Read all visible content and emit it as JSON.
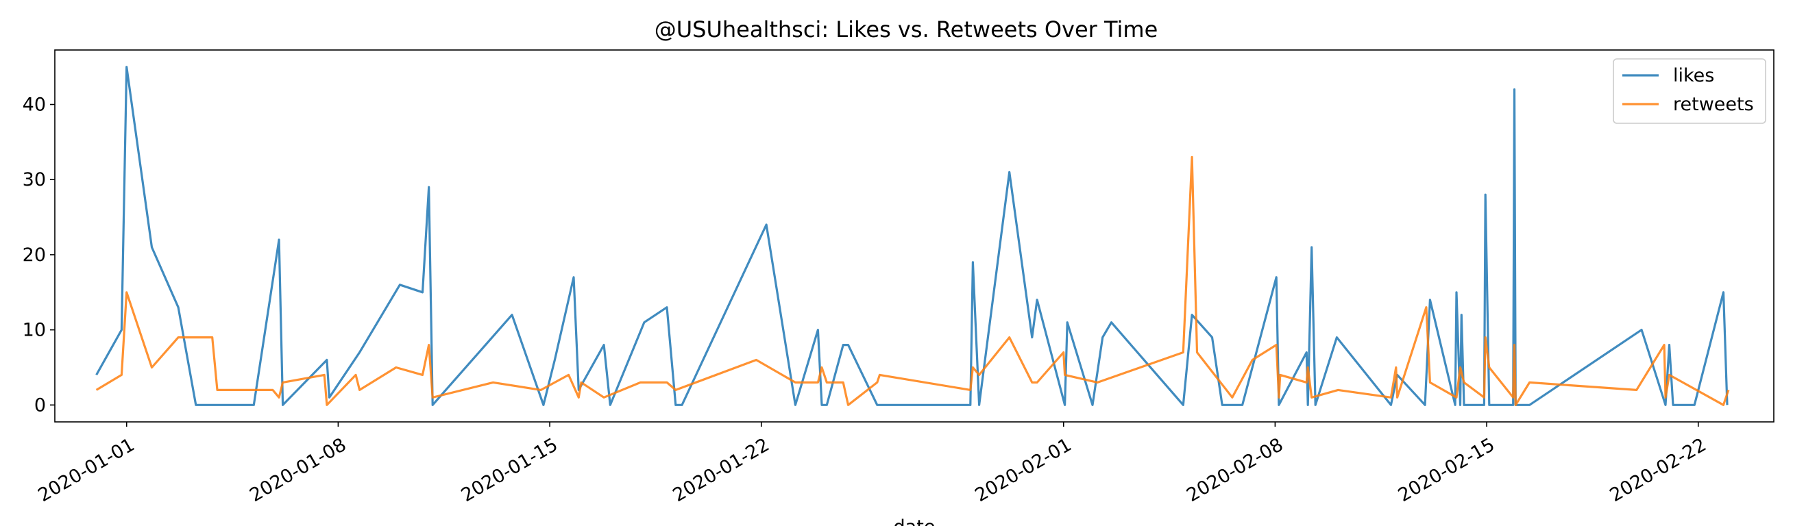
{
  "chart_data": {
    "type": "line",
    "title": "@USUhealthsci: Likes vs. Retweets Over Time",
    "xlabel": "date",
    "ylabel": "",
    "xlim": [
      "2019-12-29T15:00",
      "2020-02-24T12:00"
    ],
    "ylim": [
      -2.25,
      47.25
    ],
    "x_ticks": [
      "2020-01-01",
      "2020-01-08",
      "2020-01-15",
      "2020-01-22",
      "2020-02-01",
      "2020-02-08",
      "2020-02-15",
      "2020-02-22"
    ],
    "y_ticks": [
      0,
      10,
      20,
      30,
      40
    ],
    "grid": false,
    "legend_position": "upper-right",
    "series": [
      {
        "name": "likes",
        "color": "#1f77b4",
        "points": [
          [
            "2019-12-31T00:00",
            4
          ],
          [
            "2019-12-31T20:00",
            10
          ],
          [
            "2020-01-01T00:00",
            45
          ],
          [
            "2020-01-01T20:00",
            21
          ],
          [
            "2020-01-02T17:00",
            13
          ],
          [
            "2020-01-03T07:00",
            0
          ],
          [
            "2020-01-05T05:00",
            0
          ],
          [
            "2020-01-06T01:00",
            22
          ],
          [
            "2020-01-06T04:00",
            0
          ],
          [
            "2020-01-07T15:00",
            6
          ],
          [
            "2020-01-07T17:00",
            1
          ],
          [
            "2020-01-08T17:00",
            7
          ],
          [
            "2020-01-10T01:00",
            16
          ],
          [
            "2020-01-10T19:00",
            15
          ],
          [
            "2020-01-11T00:00",
            29
          ],
          [
            "2020-01-11T03:00",
            0
          ],
          [
            "2020-01-13T18:00",
            12
          ],
          [
            "2020-01-14T19:00",
            0
          ],
          [
            "2020-01-15T04:00",
            6
          ],
          [
            "2020-01-15T19:00",
            17
          ],
          [
            "2020-01-15T23:00",
            2
          ],
          [
            "2020-01-16T19:00",
            8
          ],
          [
            "2020-01-17T00:00",
            0
          ],
          [
            "2020-01-18T03:00",
            11
          ],
          [
            "2020-01-18T21:00",
            13
          ],
          [
            "2020-01-19T04:00",
            0
          ],
          [
            "2020-01-19T09:00",
            0
          ],
          [
            "2020-01-22T04:00",
            24
          ],
          [
            "2020-01-23T03:00",
            0
          ],
          [
            "2020-01-23T21:00",
            10
          ],
          [
            "2020-01-24T00:00",
            0
          ],
          [
            "2020-01-24T04:00",
            0
          ],
          [
            "2020-01-24T17:00",
            8
          ],
          [
            "2020-01-24T21:00",
            8
          ],
          [
            "2020-01-25T20:00",
            0
          ],
          [
            "2020-01-28T22:00",
            0
          ],
          [
            "2020-01-29T00:00",
            19
          ],
          [
            "2020-01-29T05:00",
            0
          ],
          [
            "2020-01-30T05:00",
            31
          ],
          [
            "2020-01-30T23:00",
            9
          ],
          [
            "2020-01-31T03:00",
            14
          ],
          [
            "2020-02-01T01:00",
            0
          ],
          [
            "2020-02-01T03:00",
            11
          ],
          [
            "2020-02-01T23:00",
            0
          ],
          [
            "2020-02-02T07:00",
            9
          ],
          [
            "2020-02-02T14:00",
            11
          ],
          [
            "2020-02-04T23:00",
            0
          ],
          [
            "2020-02-05T06:00",
            12
          ],
          [
            "2020-02-05T22:00",
            9
          ],
          [
            "2020-02-06T06:00",
            0
          ],
          [
            "2020-02-06T22:00",
            0
          ],
          [
            "2020-02-08T01:00",
            17
          ],
          [
            "2020-02-08T03:00",
            0
          ],
          [
            "2020-02-09T01:00",
            7
          ],
          [
            "2020-02-09T02:00",
            0
          ],
          [
            "2020-02-09T05:00",
            21
          ],
          [
            "2020-02-09T08:00",
            0
          ],
          [
            "2020-02-10T01:00",
            9
          ],
          [
            "2020-02-11T20:00",
            0
          ],
          [
            "2020-02-12T01:00",
            4
          ],
          [
            "2020-02-12T23:00",
            0
          ],
          [
            "2020-02-13T03:00",
            14
          ],
          [
            "2020-02-13T23:00",
            0
          ],
          [
            "2020-02-14T00:00",
            15
          ],
          [
            "2020-02-14T03:00",
            0
          ],
          [
            "2020-02-14T04:00",
            12
          ],
          [
            "2020-02-14T06:00",
            0
          ],
          [
            "2020-02-14T22:00",
            0
          ],
          [
            "2020-02-14T23:00",
            28
          ],
          [
            "2020-02-15T02:00",
            0
          ],
          [
            "2020-02-15T21:00",
            0
          ],
          [
            "2020-02-15T22:00",
            42
          ],
          [
            "2020-02-15T23:00",
            0
          ],
          [
            "2020-02-16T10:00",
            0
          ],
          [
            "2020-02-20T03:00",
            10
          ],
          [
            "2020-02-20T22:00",
            0
          ],
          [
            "2020-02-21T01:00",
            8
          ],
          [
            "2020-02-21T04:00",
            0
          ],
          [
            "2020-02-21T21:00",
            0
          ],
          [
            "2020-02-22T20:00",
            15
          ],
          [
            "2020-02-22T23:00",
            0
          ]
        ]
      },
      {
        "name": "retweets",
        "color": "#ff7f0e",
        "points": [
          [
            "2019-12-31T00:00",
            2
          ],
          [
            "2019-12-31T20:00",
            4
          ],
          [
            "2020-01-01T00:00",
            15
          ],
          [
            "2020-01-01T20:00",
            5
          ],
          [
            "2020-01-02T17:00",
            9
          ],
          [
            "2020-01-03T07:00",
            9
          ],
          [
            "2020-01-03T20:00",
            9
          ],
          [
            "2020-01-04T00:00",
            2
          ],
          [
            "2020-01-05T20:00",
            2
          ],
          [
            "2020-01-06T01:00",
            1
          ],
          [
            "2020-01-06T04:00",
            3
          ],
          [
            "2020-01-07T13:00",
            4
          ],
          [
            "2020-01-07T15:00",
            0
          ],
          [
            "2020-01-08T14:00",
            4
          ],
          [
            "2020-01-08T17:00",
            2
          ],
          [
            "2020-01-09T22:00",
            5
          ],
          [
            "2020-01-10T19:00",
            4
          ],
          [
            "2020-01-11T00:00",
            8
          ],
          [
            "2020-01-11T03:00",
            1
          ],
          [
            "2020-01-13T03:00",
            3
          ],
          [
            "2020-01-14T17:00",
            2
          ],
          [
            "2020-01-15T15:00",
            4
          ],
          [
            "2020-01-15T23:00",
            1
          ],
          [
            "2020-01-16T01:00",
            3
          ],
          [
            "2020-01-16T19:00",
            1
          ],
          [
            "2020-01-18T00:00",
            3
          ],
          [
            "2020-01-18T21:00",
            3
          ],
          [
            "2020-01-19T04:00",
            2
          ],
          [
            "2020-01-21T20:00",
            6
          ],
          [
            "2020-01-23T03:00",
            3
          ],
          [
            "2020-01-23T21:00",
            3
          ],
          [
            "2020-01-24T00:00",
            5
          ],
          [
            "2020-01-24T04:00",
            3
          ],
          [
            "2020-01-24T17:00",
            3
          ],
          [
            "2020-01-24T21:00",
            0
          ],
          [
            "2020-01-25T20:00",
            3
          ],
          [
            "2020-01-25T22:00",
            4
          ],
          [
            "2020-01-28T22:00",
            2
          ],
          [
            "2020-01-29T00:00",
            5
          ],
          [
            "2020-01-29T05:00",
            4
          ],
          [
            "2020-01-30T05:00",
            9
          ],
          [
            "2020-01-30T23:00",
            3
          ],
          [
            "2020-01-31T03:00",
            3
          ],
          [
            "2020-02-01T00:00",
            7
          ],
          [
            "2020-02-01T01:00",
            4
          ],
          [
            "2020-02-02T03:00",
            3
          ],
          [
            "2020-02-04T23:00",
            7
          ],
          [
            "2020-02-05T06:00",
            33
          ],
          [
            "2020-02-05T10:00",
            7
          ],
          [
            "2020-02-06T14:00",
            1
          ],
          [
            "2020-02-07T06:00",
            6
          ],
          [
            "2020-02-08T01:00",
            8
          ],
          [
            "2020-02-08T03:00",
            1
          ],
          [
            "2020-02-08T04:00",
            4
          ],
          [
            "2020-02-09T01:00",
            3
          ],
          [
            "2020-02-09T02:00",
            5
          ],
          [
            "2020-02-09T05:00",
            1
          ],
          [
            "2020-02-10T02:00",
            2
          ],
          [
            "2020-02-11T20:00",
            1
          ],
          [
            "2020-02-12T00:00",
            5
          ],
          [
            "2020-02-12T01:00",
            1
          ],
          [
            "2020-02-13T00:00",
            13
          ],
          [
            "2020-02-13T03:00",
            3
          ],
          [
            "2020-02-14T00:00",
            1
          ],
          [
            "2020-02-14T03:00",
            5
          ],
          [
            "2020-02-14T06:00",
            3
          ],
          [
            "2020-02-14T22:00",
            1
          ],
          [
            "2020-02-14T23:00",
            9
          ],
          [
            "2020-02-15T02:00",
            5
          ],
          [
            "2020-02-15T21:00",
            1
          ],
          [
            "2020-02-15T22:00",
            8
          ],
          [
            "2020-02-15T23:00",
            0
          ],
          [
            "2020-02-16T10:00",
            3
          ],
          [
            "2020-02-19T23:00",
            2
          ],
          [
            "2020-02-20T21:00",
            8
          ],
          [
            "2020-02-20T22:00",
            1
          ],
          [
            "2020-02-21T01:00",
            4
          ],
          [
            "2020-02-22T20:00",
            0
          ],
          [
            "2020-02-23T00:00",
            2
          ]
        ]
      }
    ]
  }
}
